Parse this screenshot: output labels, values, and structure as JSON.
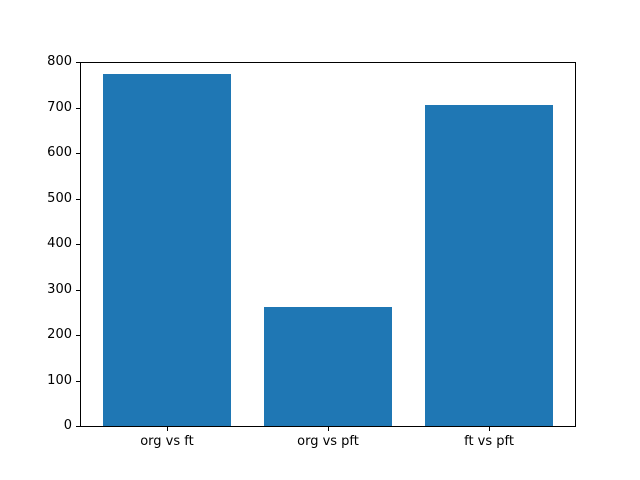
{
  "chart_data": {
    "type": "bar",
    "title": "",
    "xlabel": "",
    "ylabel": "",
    "categories": [
      "org vs ft",
      "org vs pft",
      "ft vs pft"
    ],
    "values": [
      775,
      264,
      708
    ],
    "ylim": [
      0,
      800
    ],
    "yticks": [
      0,
      100,
      200,
      300,
      400,
      500,
      600,
      700,
      800
    ],
    "bar_color": "#1f77b4",
    "background_color": "#ffffff",
    "axis_color": "#000000",
    "grid": false,
    "legend": null
  }
}
